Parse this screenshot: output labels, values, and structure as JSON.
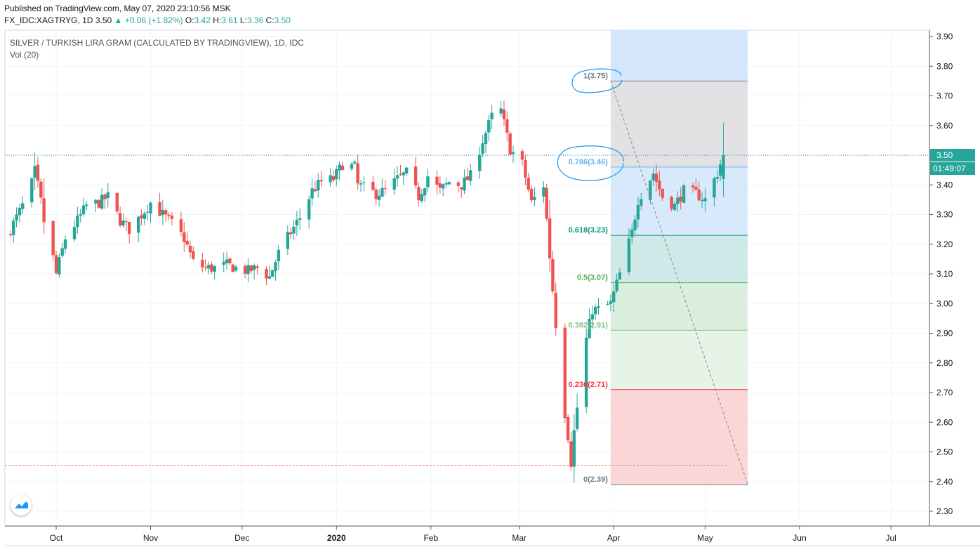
{
  "header": {
    "published": "Published on TradingView.com, May 07, 2020 23:10:56 MSK",
    "symbol": "FX_IDC:XAGTRYG, 1D",
    "last": "3.50",
    "change": "+0.06 (+1.82%)",
    "o_label": "O:",
    "o_value": "3.42",
    "h_label": "H:",
    "h_value": "3.61",
    "l_label": "L:",
    "l_value": "3.36",
    "c_label": "C:",
    "c_value": "3.50"
  },
  "chart_title": "SILVER / TURKISH LIRA GRAM (CALCULATED BY TRADINGVIEW), 1D, IDC",
  "volume_label": "Vol (20)",
  "price_badge": "3.50",
  "countdown_badge": "01:49:07",
  "colors": {
    "up": "#26a69a",
    "down": "#ef5350",
    "grid": "#f0f3fa",
    "axis_text": "#131722",
    "badge": "#26a69a",
    "annotation": "#2196f3"
  },
  "logo_icon": "tradingview-logo-icon",
  "chart_data": {
    "type": "candlestick",
    "title": "SILVER / TURKISH LIRA GRAM (CALCULATED BY TRADINGVIEW), 1D, IDC",
    "xlabel": "",
    "ylabel": "",
    "ylim": [
      2.25,
      3.93
    ],
    "y_ticks": [
      "3.90",
      "3.80",
      "3.70",
      "3.60",
      "3.50",
      "3.40",
      "3.30",
      "3.20",
      "3.10",
      "3.00",
      "2.90",
      "2.80",
      "2.70",
      "2.60",
      "2.50",
      "2.40",
      "2.30"
    ],
    "x_ticks": [
      {
        "label": "Oct",
        "date": "2019-10-01"
      },
      {
        "label": "Nov",
        "date": "2019-11-01"
      },
      {
        "label": "Dec",
        "date": "2019-12-01"
      },
      {
        "label": "2020",
        "date": "2020-01-01"
      },
      {
        "label": "Feb",
        "date": "2020-02-01"
      },
      {
        "label": "Mar",
        "date": "2020-03-01"
      },
      {
        "label": "Apr",
        "date": "2020-04-01"
      },
      {
        "label": "May",
        "date": "2020-05-01"
      },
      {
        "label": "Jun",
        "date": "2020-06-01"
      },
      {
        "label": "Jul",
        "date": "2020-07-01"
      }
    ],
    "x_range": [
      "2019-09-14",
      "2020-07-07"
    ],
    "grid": true,
    "current_price": 3.5,
    "close_series_key": [
      {
        "date": "2019-09-16",
        "close": 3.25
      },
      {
        "date": "2019-09-20",
        "close": 3.33
      },
      {
        "date": "2019-09-24",
        "close": 3.43
      },
      {
        "date": "2019-09-27",
        "close": 3.28
      },
      {
        "date": "2019-10-01",
        "close": 3.1
      },
      {
        "date": "2019-10-04",
        "close": 3.22
      },
      {
        "date": "2019-10-08",
        "close": 3.28
      },
      {
        "date": "2019-10-11",
        "close": 3.33
      },
      {
        "date": "2019-10-15",
        "close": 3.34
      },
      {
        "date": "2019-10-18",
        "close": 3.36
      },
      {
        "date": "2019-10-22",
        "close": 3.28
      },
      {
        "date": "2019-10-25",
        "close": 3.25
      },
      {
        "date": "2019-10-29",
        "close": 3.3
      },
      {
        "date": "2019-11-01",
        "close": 3.34
      },
      {
        "date": "2019-11-05",
        "close": 3.3
      },
      {
        "date": "2019-11-08",
        "close": 3.27
      },
      {
        "date": "2019-11-12",
        "close": 3.22
      },
      {
        "date": "2019-11-15",
        "close": 3.14
      },
      {
        "date": "2019-11-19",
        "close": 3.12
      },
      {
        "date": "2019-11-22",
        "close": 3.12
      },
      {
        "date": "2019-11-26",
        "close": 3.13
      },
      {
        "date": "2019-11-29",
        "close": 3.12
      },
      {
        "date": "2019-12-03",
        "close": 3.11
      },
      {
        "date": "2019-12-06",
        "close": 3.12
      },
      {
        "date": "2019-12-10",
        "close": 3.09
      },
      {
        "date": "2019-12-13",
        "close": 3.17
      },
      {
        "date": "2019-12-17",
        "close": 3.24
      },
      {
        "date": "2019-12-20",
        "close": 3.29
      },
      {
        "date": "2019-12-24",
        "close": 3.38
      },
      {
        "date": "2019-12-27",
        "close": 3.41
      },
      {
        "date": "2019-12-31",
        "close": 3.42
      },
      {
        "date": "2020-01-03",
        "close": 3.47
      },
      {
        "date": "2020-01-07",
        "close": 3.46
      },
      {
        "date": "2020-01-08",
        "close": 3.4
      },
      {
        "date": "2020-01-14",
        "close": 3.37
      },
      {
        "date": "2020-01-17",
        "close": 3.38
      },
      {
        "date": "2020-01-21",
        "close": 3.42
      },
      {
        "date": "2020-01-24",
        "close": 3.44
      },
      {
        "date": "2020-01-28",
        "close": 3.36
      },
      {
        "date": "2020-01-31",
        "close": 3.43
      },
      {
        "date": "2020-02-04",
        "close": 3.38
      },
      {
        "date": "2020-02-07",
        "close": 3.41
      },
      {
        "date": "2020-02-11",
        "close": 3.4
      },
      {
        "date": "2020-02-14",
        "close": 3.43
      },
      {
        "date": "2020-02-18",
        "close": 3.55
      },
      {
        "date": "2020-02-21",
        "close": 3.63
      },
      {
        "date": "2020-02-24",
        "close": 3.65
      },
      {
        "date": "2020-02-27",
        "close": 3.52
      },
      {
        "date": "2020-03-02",
        "close": 3.47
      },
      {
        "date": "2020-03-05",
        "close": 3.34
      },
      {
        "date": "2020-03-09",
        "close": 3.4
      },
      {
        "date": "2020-03-10",
        "close": 3.28
      },
      {
        "date": "2020-03-12",
        "close": 3.05
      },
      {
        "date": "2020-03-16",
        "close": 2.63
      },
      {
        "date": "2020-03-18",
        "close": 2.48
      },
      {
        "date": "2020-03-20",
        "close": 2.65
      },
      {
        "date": "2020-03-23",
        "close": 2.88
      },
      {
        "date": "2020-03-25",
        "close": 2.98
      },
      {
        "date": "2020-03-27",
        "close": 2.98
      },
      {
        "date": "2020-03-31",
        "close": 3.0
      },
      {
        "date": "2020-04-03",
        "close": 3.1
      },
      {
        "date": "2020-04-07",
        "close": 3.24
      },
      {
        "date": "2020-04-09",
        "close": 3.35
      },
      {
        "date": "2020-04-14",
        "close": 3.44
      },
      {
        "date": "2020-04-17",
        "close": 3.36
      },
      {
        "date": "2020-04-21",
        "close": 3.33
      },
      {
        "date": "2020-04-24",
        "close": 3.38
      },
      {
        "date": "2020-04-28",
        "close": 3.37
      },
      {
        "date": "2020-05-01",
        "close": 3.35
      },
      {
        "date": "2020-05-05",
        "close": 3.44
      },
      {
        "date": "2020-05-07",
        "close": 3.5
      }
    ],
    "fibonacci": {
      "start": {
        "date": "2020-03-31",
        "price": 3.75
      },
      "end": {
        "date": "2020-05-15",
        "price": 2.39
      },
      "levels": [
        {
          "ratio": 1,
          "label": "1(3.75)",
          "price": 3.75,
          "color": "#787b86"
        },
        {
          "ratio": 0.786,
          "label": "0.786(3.46)",
          "price": 3.46,
          "color": "#64b5f6"
        },
        {
          "ratio": 0.618,
          "label": "0.618(3.23)",
          "price": 3.23,
          "color": "#089981"
        },
        {
          "ratio": 0.5,
          "label": "0.5(3.07)",
          "price": 3.07,
          "color": "#4caf50"
        },
        {
          "ratio": 0.382,
          "label": "0.382(2.91)",
          "price": 2.91,
          "color": "#81c784"
        },
        {
          "ratio": 0.236,
          "label": "0.236(2.71)",
          "price": 2.71,
          "color": "#f23645"
        },
        {
          "ratio": 0,
          "label": "0(2.39)",
          "price": 2.39,
          "color": "#787b86"
        }
      ]
    },
    "horizontal_lines": [
      {
        "price": 3.5,
        "style": "dotted",
        "color": "#1e88a8"
      },
      {
        "price": 2.455,
        "style": "dashed",
        "color": "#f28b82",
        "to_date": "2020-05-08"
      }
    ]
  }
}
